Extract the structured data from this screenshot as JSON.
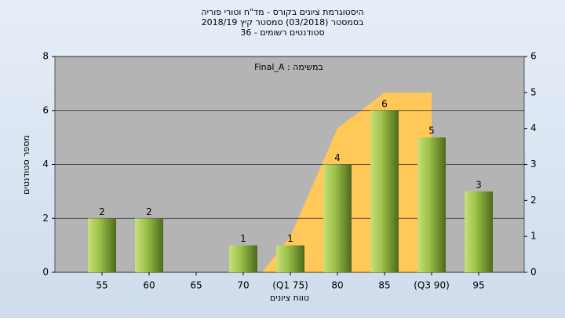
{
  "chart_data": {
    "type": "bar",
    "title": [
      "היסטוגרמת ציונים בקורס - מד\"ח וטורי פוריה",
      "בסמסטר (03/2018) סמסטר קיץ 2018/19",
      "סטודנטים רשומים - 36"
    ],
    "annotation": "במשימה : Final_A",
    "x_label": "טווח ציונים",
    "y_label": "מספר סטודנטים",
    "categories": [
      "55",
      "60",
      "65",
      "70",
      "(Q1 75)",
      "80",
      "85",
      "(Q3 90)",
      "95"
    ],
    "values": [
      2,
      2,
      0,
      1,
      1,
      4,
      6,
      5,
      3
    ],
    "color": "#8fb63a",
    "y2_area": {
      "values": [
        null,
        null,
        null,
        null,
        1,
        4,
        5,
        5,
        null
      ],
      "axis": "y2",
      "color": "#ffc858"
    },
    "ylim": [
      0,
      8
    ],
    "yticks": [
      0,
      2,
      4,
      6,
      8
    ],
    "y2lim": [
      0,
      6
    ],
    "y2ticks": [
      0,
      1,
      2,
      3,
      4,
      5,
      6
    ],
    "grid": true
  }
}
